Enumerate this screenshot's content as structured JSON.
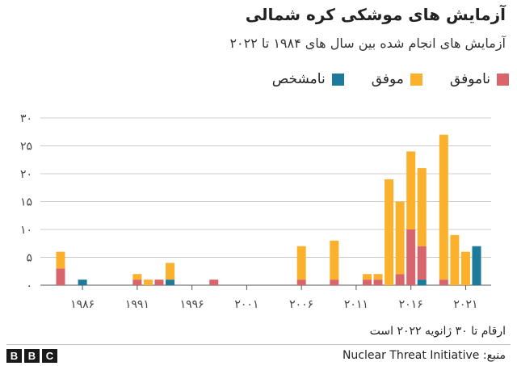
{
  "title": "آزمایش های موشکی کره شمالی",
  "subtitle": "آزمایش های انجام شده بین سال های ۱۹۸۴ تا ۲۰۲۲",
  "legend": [
    {
      "label": "ناموفق",
      "color": "#d9656c"
    },
    {
      "label": "موفق",
      "color": "#fbb12c"
    },
    {
      "label": "نامشخص",
      "color": "#1d7a9b"
    }
  ],
  "note": "ارقام تا ۳۰ ژانویه ۲۰۲۲ است",
  "source": "منبع: Nuclear Threat Initiative",
  "logo": [
    "B",
    "B",
    "C"
  ],
  "chart_data": {
    "type": "bar",
    "stacked": true,
    "x": [
      1984,
      1985,
      1986,
      1987,
      1988,
      1989,
      1990,
      1991,
      1992,
      1993,
      1994,
      1995,
      1996,
      1997,
      1998,
      1999,
      2000,
      2001,
      2002,
      2003,
      2004,
      2005,
      2006,
      2007,
      2008,
      2009,
      2010,
      2011,
      2012,
      2013,
      2014,
      2015,
      2016,
      2017,
      2018,
      2019,
      2020,
      2021,
      2022
    ],
    "series": [
      {
        "name": "موفق",
        "color": "#fbb12c",
        "values": [
          3,
          0,
          0,
          0,
          0,
          0,
          0,
          1,
          1,
          0,
          3,
          0,
          0,
          0,
          0,
          0,
          0,
          0,
          0,
          0,
          0,
          0,
          6,
          0,
          0,
          7,
          0,
          0,
          1,
          1,
          19,
          13,
          14,
          14,
          0,
          26,
          9,
          6,
          0
        ]
      },
      {
        "name": "ناموفق",
        "color": "#d9656c",
        "values": [
          3,
          0,
          0,
          0,
          0,
          0,
          0,
          1,
          0,
          1,
          0,
          0,
          0,
          0,
          1,
          0,
          0,
          0,
          0,
          0,
          0,
          0,
          1,
          0,
          0,
          1,
          0,
          0,
          1,
          1,
          0,
          2,
          10,
          6,
          0,
          1,
          0,
          0,
          0
        ]
      },
      {
        "name": "نامشخص",
        "color": "#1d7a9b",
        "values": [
          0,
          0,
          1,
          0,
          0,
          0,
          0,
          0,
          0,
          0,
          1,
          0,
          0,
          0,
          0,
          0,
          0,
          0,
          0,
          0,
          0,
          0,
          0,
          0,
          0,
          0,
          0,
          0,
          0,
          0,
          0,
          0,
          0,
          1,
          0,
          0,
          0,
          0,
          7
        ]
      }
    ],
    "ylim": [
      0,
      30
    ],
    "yticks": [
      0,
      5,
      10,
      15,
      20,
      25,
      30
    ],
    "ytick_labels": [
      "۰",
      "۵",
      "۱۰",
      "۱۵",
      "۲۰",
      "۲۵",
      "۳۰"
    ],
    "xticks": [
      1986,
      1991,
      1996,
      2001,
      2006,
      2011,
      2016,
      2021
    ],
    "xtick_labels": [
      "۱۹۸۶",
      "۱۹۹۱",
      "۱۹۹۶",
      "۲۰۰۱",
      "۲۰۰۶",
      "۲۰۱۱",
      "۲۰۱۶",
      "۲۰۲۱"
    ],
    "grid": true,
    "legend_position": "top-right"
  }
}
